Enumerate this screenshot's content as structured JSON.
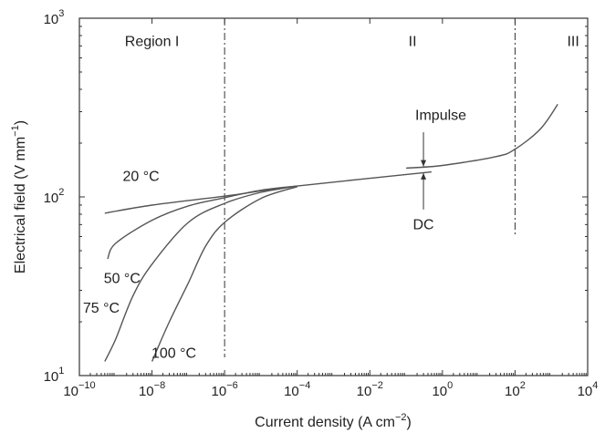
{
  "chart_data": {
    "type": "line",
    "title": "",
    "xlabel": "Current density (A cm",
    "xlabel_sup": "−2",
    "xlabel_end": ")",
    "ylabel": "Electrical field (V mm",
    "ylabel_sup": "−1",
    "ylabel_end": ")",
    "x_scale": "log",
    "y_scale": "log",
    "xlim": [
      1e-10,
      10000.0
    ],
    "ylim": [
      10,
      1000
    ],
    "grid": false,
    "x_ticks": [
      {
        "value": 1e-10,
        "base": "10",
        "exp": "−10"
      },
      {
        "value": 1e-08,
        "base": "10",
        "exp": "−8"
      },
      {
        "value": 1e-06,
        "base": "10",
        "exp": "−6"
      },
      {
        "value": 0.0001,
        "base": "10",
        "exp": "−4"
      },
      {
        "value": 0.01,
        "base": "10",
        "exp": "−2"
      },
      {
        "value": 1,
        "base": "10",
        "exp": "0"
      },
      {
        "value": 100,
        "base": "10",
        "exp": "2"
      },
      {
        "value": 10000,
        "base": "10",
        "exp": "4"
      }
    ],
    "y_ticks": [
      {
        "value": 10,
        "base": "10",
        "exp": "1"
      },
      {
        "value": 100,
        "base": "10",
        "exp": "2"
      },
      {
        "value": 1000,
        "base": "10",
        "exp": "3"
      }
    ],
    "region_boundaries": [
      1e-06,
      100
    ],
    "regions": [
      {
        "label": "Region I",
        "x": 1e-08,
        "y": 700
      },
      {
        "label": "II",
        "x": 0.15,
        "y": 700
      },
      {
        "label": "III",
        "x": 4000,
        "y": 700
      }
    ],
    "series": [
      {
        "label": "20 °C",
        "label_pos": [
          5e-09,
          123
        ],
        "x": [
          5e-10,
          1e-08,
          1e-06,
          0.0001,
          0.5
        ],
        "y": [
          81,
          90,
          101,
          115,
          138
        ]
      },
      {
        "label": "50 °C",
        "label_pos": [
          1.5e-09,
          33
        ],
        "x": [
          6e-10,
          1e-09,
          1e-08,
          1e-07,
          1e-06,
          1e-05,
          0.0001
        ],
        "y": [
          45,
          55,
          74,
          89,
          99,
          109,
          115
        ]
      },
      {
        "label": "75 °C",
        "label_pos": [
          4e-10,
          22.5
        ],
        "x": [
          5e-10,
          1e-09,
          3e-09,
          1e-08,
          1e-07,
          1e-06,
          1e-05,
          0.0001
        ],
        "y": [
          12,
          16,
          28,
          42,
          72,
          92,
          106,
          115
        ]
      },
      {
        "label": "100 °C",
        "label_pos": [
          4e-08,
          12.6
        ],
        "x": [
          1e-08,
          3e-08,
          1e-07,
          3e-07,
          1e-06,
          1e-05,
          0.0001
        ],
        "y": [
          12,
          20,
          33,
          53,
          72,
          98,
          114
        ]
      },
      {
        "label": "Impulse",
        "x": [
          0.1,
          1,
          30,
          100,
          500,
          1500
        ],
        "y": [
          145,
          150,
          168,
          185,
          240,
          330
        ]
      }
    ],
    "annotations": [
      {
        "text": "Impulse",
        "text_pos": [
          0.9,
          270
        ],
        "arrow_from": [
          0.3,
          230
        ],
        "arrow_to": [
          0.3,
          148
        ]
      },
      {
        "text": "DC",
        "text_pos": [
          0.3,
          66
        ],
        "arrow_from": [
          0.3,
          85
        ],
        "arrow_to": [
          0.3,
          136
        ]
      }
    ]
  }
}
